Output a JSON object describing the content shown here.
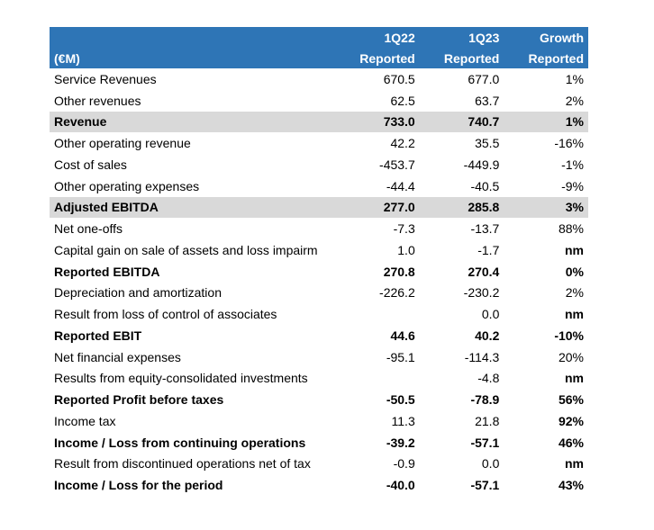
{
  "table": {
    "header_row1": [
      "",
      "1Q22",
      "1Q23",
      "Growth"
    ],
    "header_row2": [
      "(€M)",
      "Reported",
      "Reported",
      "Reported"
    ],
    "rows": [
      {
        "label": "Service Revenues",
        "q22": "670.5",
        "q23": "677.0",
        "growth": "1%",
        "bold": false,
        "shaded": false,
        "growth_bold": false
      },
      {
        "label": "Other revenues",
        "q22": "62.5",
        "q23": "63.7",
        "growth": "2%",
        "bold": false,
        "shaded": false,
        "growth_bold": false
      },
      {
        "label": "Revenue",
        "q22": "733.0",
        "q23": "740.7",
        "growth": "1%",
        "bold": true,
        "shaded": true,
        "growth_bold": true
      },
      {
        "label": "Other operating revenue",
        "q22": "42.2",
        "q23": "35.5",
        "growth": "-16%",
        "bold": false,
        "shaded": false,
        "growth_bold": false
      },
      {
        "label": "Cost of sales",
        "q22": "-453.7",
        "q23": "-449.9",
        "growth": "-1%",
        "bold": false,
        "shaded": false,
        "growth_bold": false
      },
      {
        "label": "Other operating expenses",
        "q22": "-44.4",
        "q23": "-40.5",
        "growth": "-9%",
        "bold": false,
        "shaded": false,
        "growth_bold": false
      },
      {
        "label": "Adjusted EBITDA",
        "q22": "277.0",
        "q23": "285.8",
        "growth": "3%",
        "bold": true,
        "shaded": true,
        "growth_bold": true
      },
      {
        "label": "Net one-offs",
        "q22": "-7.3",
        "q23": "-13.7",
        "growth": "88%",
        "bold": false,
        "shaded": false,
        "growth_bold": false
      },
      {
        "label": "Capital gain on sale of assets and loss impairm",
        "q22": "1.0",
        "q23": "-1.7",
        "growth": "nm",
        "bold": false,
        "shaded": false,
        "growth_bold": true
      },
      {
        "label": "Reported EBITDA",
        "q22": "270.8",
        "q23": "270.4",
        "growth": "0%",
        "bold": true,
        "shaded": false,
        "growth_bold": true
      },
      {
        "label": "Depreciation and amortization",
        "q22": "-226.2",
        "q23": "-230.2",
        "growth": "2%",
        "bold": false,
        "shaded": false,
        "growth_bold": false
      },
      {
        "label": "Result from loss of control of associates",
        "q22": "",
        "q23": "0.0",
        "growth": "nm",
        "bold": false,
        "shaded": false,
        "growth_bold": true
      },
      {
        "label": "Reported EBIT",
        "q22": "44.6",
        "q23": "40.2",
        "growth": "-10%",
        "bold": true,
        "shaded": false,
        "growth_bold": true
      },
      {
        "label": "Net financial expenses",
        "q22": "-95.1",
        "q23": "-114.3",
        "growth": "20%",
        "bold": false,
        "shaded": false,
        "growth_bold": false
      },
      {
        "label": "Results from equity-consolidated investments",
        "q22": "",
        "q23": "-4.8",
        "growth": "nm",
        "bold": false,
        "shaded": false,
        "growth_bold": true
      },
      {
        "label": "Reported Profit before taxes",
        "q22": "-50.5",
        "q23": "-78.9",
        "growth": "56%",
        "bold": true,
        "shaded": false,
        "growth_bold": true
      },
      {
        "label": "Income tax",
        "q22": "11.3",
        "q23": "21.8",
        "growth": "92%",
        "bold": false,
        "shaded": false,
        "growth_bold": true
      },
      {
        "label": "Income / Loss from continuing operations",
        "q22": "-39.2",
        "q23": "-57.1",
        "growth": "46%",
        "bold": true,
        "shaded": false,
        "growth_bold": true
      },
      {
        "label": "Result from discontinued operations net of tax",
        "q22": "-0.9",
        "q23": "0.0",
        "growth": "nm",
        "bold": false,
        "shaded": false,
        "growth_bold": true
      },
      {
        "label": "Income / Loss for the period",
        "q22": "-40.0",
        "q23": "-57.1",
        "growth": "43%",
        "bold": true,
        "shaded": false,
        "growth_bold": true
      }
    ]
  },
  "colors": {
    "header_bg": "#2e75b6",
    "header_text": "#ffffff",
    "shaded_row_bg": "#d9d9d9"
  }
}
